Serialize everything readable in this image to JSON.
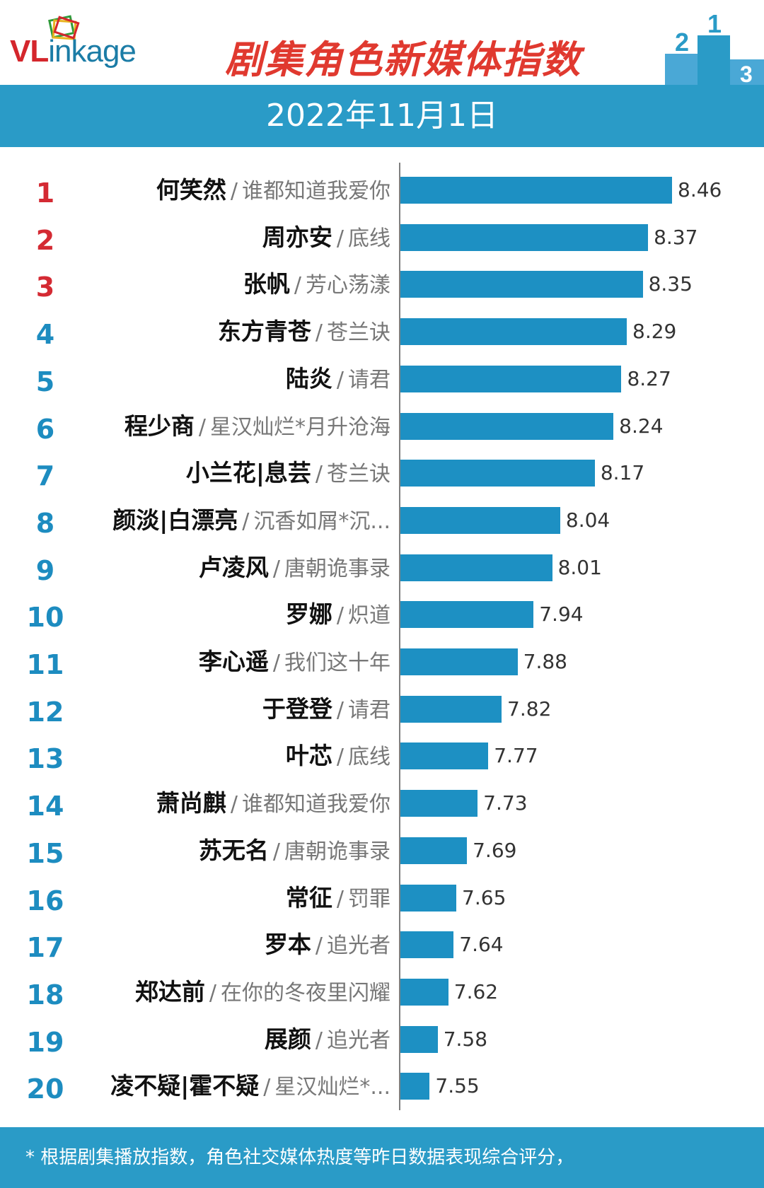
{
  "header": {
    "logo_accent": "VL",
    "logo_rest": "inkage",
    "title": "剧集角色新媒体指数",
    "podium_digits": [
      "2",
      "1",
      "3"
    ]
  },
  "date": "2022年11月1日",
  "colors": {
    "bar": "#1d90c3",
    "band": "#2a9bc7",
    "top_rank": "#d42a33",
    "rank": "#1d8cc0",
    "title": "#e0392f"
  },
  "chart_data": {
    "type": "bar",
    "orientation": "horizontal",
    "title": "剧集角色新媒体指数",
    "subtitle": "2022年11月1日",
    "categories": [
      {
        "rank": "1",
        "name": "何笑然",
        "drama": "谁都知道我爱你"
      },
      {
        "rank": "2",
        "name": "周亦安",
        "drama": "底线"
      },
      {
        "rank": "3",
        "name": "张帆",
        "drama": "芳心荡漾"
      },
      {
        "rank": "4",
        "name": "东方青苍",
        "drama": "苍兰诀"
      },
      {
        "rank": "5",
        "name": "陆炎",
        "drama": "请君"
      },
      {
        "rank": "6",
        "name": "程少商",
        "drama": "星汉灿烂*月升沧海"
      },
      {
        "rank": "7",
        "name": "小兰花|息芸",
        "drama": "苍兰诀"
      },
      {
        "rank": "8",
        "name": "颜淡|白漂亮",
        "drama": "沉香如屑*沉..."
      },
      {
        "rank": "9",
        "name": "卢凌风",
        "drama": "唐朝诡事录"
      },
      {
        "rank": "10",
        "name": "罗娜",
        "drama": "炽道"
      },
      {
        "rank": "11",
        "name": "李心遥",
        "drama": "我们这十年"
      },
      {
        "rank": "12",
        "name": "于登登",
        "drama": "请君"
      },
      {
        "rank": "13",
        "name": "叶芯",
        "drama": "底线"
      },
      {
        "rank": "14",
        "name": "萧尚麒",
        "drama": "谁都知道我爱你"
      },
      {
        "rank": "15",
        "name": "苏无名",
        "drama": "唐朝诡事录"
      },
      {
        "rank": "16",
        "name": "常征",
        "drama": "罚罪"
      },
      {
        "rank": "17",
        "name": "罗本",
        "drama": "追光者"
      },
      {
        "rank": "18",
        "name": "郑达前",
        "drama": "在你的冬夜里闪耀"
      },
      {
        "rank": "19",
        "name": "展颜",
        "drama": "追光者"
      },
      {
        "rank": "20",
        "name": "凌不疑|霍不疑",
        "drama": "星汉灿烂*..."
      }
    ],
    "values": [
      8.46,
      8.37,
      8.35,
      8.29,
      8.27,
      8.24,
      8.17,
      8.04,
      8.01,
      7.94,
      7.88,
      7.82,
      7.77,
      7.73,
      7.69,
      7.65,
      7.64,
      7.62,
      7.58,
      7.55
    ],
    "value_labels": [
      "8.46",
      "8.37",
      "8.35",
      "8.29",
      "8.27",
      "8.24",
      "8.17",
      "8.04",
      "8.01",
      "7.94",
      "7.88",
      "7.82",
      "7.77",
      "7.73",
      "7.69",
      "7.65",
      "7.64",
      "7.62",
      "7.58",
      "7.55"
    ],
    "xlim": [
      7.44,
      8.46
    ],
    "grid": false,
    "legend": "none"
  },
  "footer": {
    "note": "* 根据剧集播放指数，角色社交媒体热度等昨日数据表现综合评分，"
  }
}
